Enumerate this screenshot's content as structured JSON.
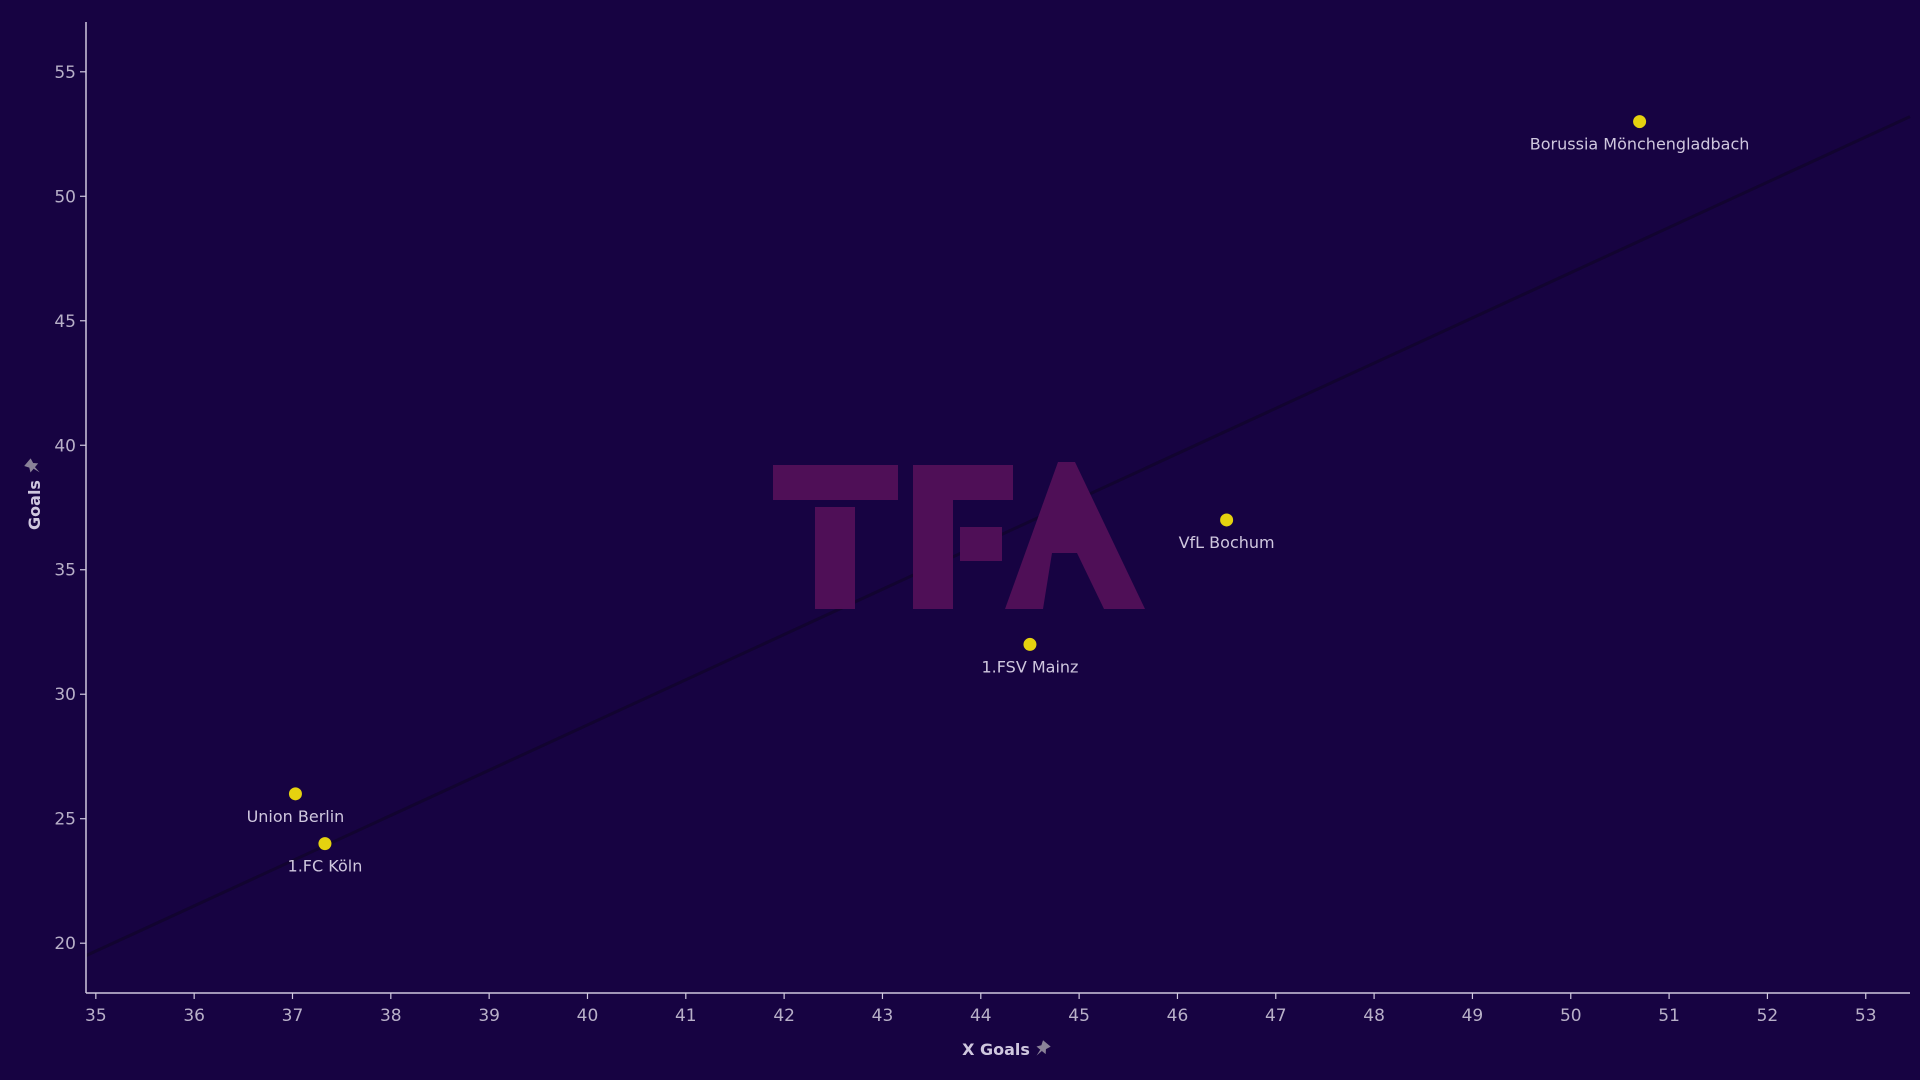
{
  "chart_data": {
    "type": "scatter",
    "xlabel": "X Goals",
    "ylabel": "Goals",
    "xlim": [
      34.9,
      53.45
    ],
    "ylim": [
      18,
      57
    ],
    "xticks": [
      35,
      36,
      37,
      38,
      39,
      40,
      41,
      42,
      43,
      44,
      45,
      46,
      47,
      48,
      49,
      50,
      51,
      52,
      53
    ],
    "yticks": [
      20,
      25,
      30,
      35,
      40,
      45,
      50,
      55
    ],
    "grid": false,
    "trendline": {
      "x": [
        34.9,
        53.45
      ],
      "y": [
        19.5,
        53.2
      ]
    },
    "points": [
      {
        "label": "Borussia Mönchengladbach",
        "x": 50.7,
        "y": 53
      },
      {
        "label": "VfL Bochum",
        "x": 46.5,
        "y": 37
      },
      {
        "label": "1.FSV Mainz",
        "x": 44.5,
        "y": 32
      },
      {
        "label": "Union Berlin",
        "x": 37.03,
        "y": 26
      },
      {
        "label": "1.FC Köln",
        "x": 37.33,
        "y": 24
      }
    ]
  },
  "watermark": {
    "text": "TFA"
  },
  "colors": {
    "background": "#170342",
    "axis": "#cfc7de",
    "tick_label": "#b8b0c8",
    "point": "#e5d20f",
    "trendline": "#120430",
    "watermark": "#4f0f57",
    "pin_icon": "#8a8298"
  }
}
